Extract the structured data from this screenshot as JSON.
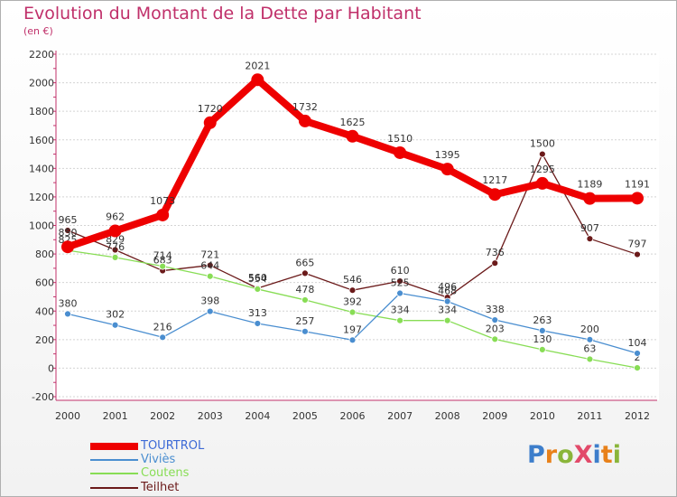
{
  "header": {
    "title": "Evolution du Montant de la Dette par Habitant",
    "subtitle": "(en €)"
  },
  "logo": {
    "text": "ProXiti",
    "colors": [
      "#3d7ecb",
      "#e8811a",
      "#8ab53a",
      "#e24a6a",
      "#3d7ecb",
      "#e8811a",
      "#8ab53a"
    ]
  },
  "chart_data": {
    "type": "line",
    "x": [
      2000,
      2001,
      2002,
      2003,
      2004,
      2005,
      2006,
      2007,
      2008,
      2009,
      2010,
      2011,
      2012
    ],
    "ylim": [
      -200,
      2200
    ],
    "yticks": [
      -200,
      0,
      200,
      400,
      600,
      800,
      1000,
      1200,
      1400,
      1600,
      1800,
      2000,
      2200
    ],
    "grid": "horizontal",
    "legend_position": "bottom-left",
    "series": [
      {
        "name": "Teilhet",
        "color": "#6b1a1a",
        "values": [
          965,
          829,
          683,
          721,
          560,
          665,
          546,
          610,
          496,
          736,
          1500,
          907,
          797
        ]
      },
      {
        "name": "Coutens",
        "color": "#88dd55",
        "values": [
          825,
          776,
          714,
          644,
          554,
          478,
          392,
          334,
          334,
          203,
          130,
          63,
          2
        ]
      },
      {
        "name": "Viviès",
        "color": "#4a8ed0",
        "values": [
          380,
          302,
          216,
          398,
          313,
          257,
          197,
          525,
          468,
          338,
          263,
          200,
          104
        ]
      },
      {
        "name": "TOURTROL",
        "color": "#ee0000",
        "values": [
          850,
          962,
          1073,
          1720,
          2021,
          1732,
          1625,
          1510,
          1395,
          1217,
          1295,
          1189,
          1191
        ]
      }
    ],
    "legend_order": [
      "TOURTROL",
      "Viviès",
      "Coutens",
      "Teilhet"
    ]
  }
}
